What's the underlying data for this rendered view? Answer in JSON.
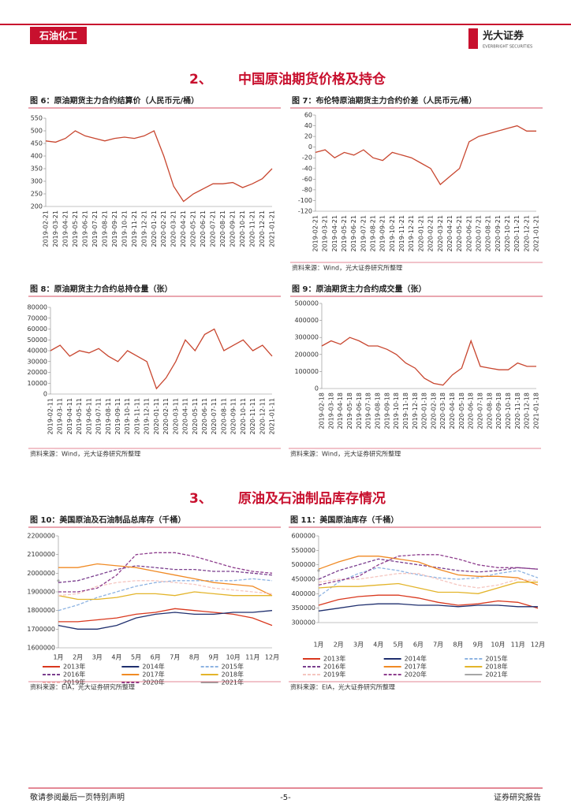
{
  "header": {
    "section": "石油化工",
    "logo": "光大证券",
    "logo_en": "EVERBRIGHT SECURITIES"
  },
  "sections": [
    {
      "number": "2、",
      "title": "中国原油期货价格及持仓"
    },
    {
      "number": "3、",
      "title": "原油及石油制品库存情况"
    }
  ],
  "footer": {
    "left": "敬请参阅最后一页特别声明",
    "page": "-5-",
    "right": "证券研究报告"
  },
  "chart_data": [
    {
      "type": "line",
      "title": "图 6：原油期货主力合约结算价（人民币元/桶）",
      "color": "#c8462f",
      "categories": [
        "2019-02-21",
        "2019-03-21",
        "2019-04-21",
        "2019-05-21",
        "2019-06-21",
        "2019-07-21",
        "2019-08-21",
        "2019-09-21",
        "2019-10-21",
        "2019-11-21",
        "2019-12-21",
        "2020-01-21",
        "2020-02-21",
        "2020-03-21",
        "2020-04-21",
        "2020-05-21",
        "2020-06-21",
        "2020-07-21",
        "2020-08-21",
        "2020-09-21",
        "2020-10-21",
        "2020-11-21",
        "2020-12-21",
        "2021-01-21"
      ],
      "values": [
        460,
        455,
        470,
        500,
        480,
        470,
        460,
        470,
        475,
        470,
        480,
        500,
        400,
        280,
        220,
        250,
        270,
        290,
        290,
        295,
        275,
        290,
        310,
        350
      ],
      "ylim": [
        200,
        550
      ],
      "yticks": [
        200,
        250,
        300,
        350,
        400,
        450,
        500,
        550
      ]
    },
    {
      "type": "line",
      "title": "图 7：布伦特原油期货主力合约价差（人民币元/桶）",
      "color": "#c8462f",
      "source": "资料来源：Wind，光大证券研究所整理",
      "categories": [
        "2019-02-21",
        "2019-03-21",
        "2019-04-21",
        "2019-05-21",
        "2019-06-21",
        "2019-07-21",
        "2019-08-21",
        "2019-09-21",
        "2019-10-21",
        "2019-11-21",
        "2019-12-21",
        "2020-01-21",
        "2020-02-21",
        "2020-03-21",
        "2020-04-21",
        "2020-05-21",
        "2020-06-21",
        "2020-07-21",
        "2020-08-21",
        "2020-09-21",
        "2020-10-21",
        "2020-11-21",
        "2020-12-21",
        "2021-01-21"
      ],
      "values": [
        -10,
        -5,
        -20,
        -10,
        -15,
        -5,
        -20,
        -25,
        -10,
        -15,
        -20,
        -30,
        -40,
        -70,
        -55,
        -40,
        10,
        20,
        25,
        30,
        35,
        40,
        30,
        30
      ],
      "ylim": [
        -120,
        60
      ],
      "yticks": [
        -120,
        -100,
        -80,
        -60,
        -40,
        -20,
        0,
        20,
        40,
        60
      ]
    },
    {
      "type": "line",
      "title": "图 8：原油期货主力合约总持仓量（张）",
      "color": "#c8462f",
      "source": "资料来源：Wind，光大证券研究所整理",
      "categories": [
        "2019-02-11",
        "2019-03-11",
        "2019-04-11",
        "2019-05-11",
        "2019-06-11",
        "2019-07-11",
        "2019-08-11",
        "2019-09-11",
        "2019-10-11",
        "2019-11-11",
        "2019-12-11",
        "2020-01-11",
        "2020-02-11",
        "2020-03-11",
        "2020-04-11",
        "2020-05-11",
        "2020-06-11",
        "2020-07-11",
        "2020-08-11",
        "2020-09-11",
        "2020-10-11",
        "2020-11-11",
        "2020-12-11",
        "2021-01-11"
      ],
      "values": [
        40000,
        45000,
        35000,
        40000,
        38000,
        42000,
        35000,
        30000,
        40000,
        35000,
        30000,
        5000,
        15000,
        30000,
        50000,
        40000,
        55000,
        60000,
        40000,
        45000,
        50000,
        40000,
        45000,
        35000
      ],
      "ylim": [
        0,
        80000
      ],
      "yticks": [
        0,
        10000,
        20000,
        30000,
        40000,
        50000,
        60000,
        70000,
        80000
      ]
    },
    {
      "type": "line",
      "title": "图 9：原油期货主力合约成交量（张）",
      "color": "#c8462f",
      "source": "资料来源：Wind，光大证券研究所整理",
      "categories": [
        "2019-02-18",
        "2019-03-18",
        "2019-04-18",
        "2019-05-18",
        "2019-06-18",
        "2019-07-18",
        "2019-08-18",
        "2019-09-18",
        "2019-10-18",
        "2019-11-18",
        "2019-12-18",
        "2020-01-18",
        "2020-02-18",
        "2020-03-18",
        "2020-04-18",
        "2020-05-18",
        "2020-06-18",
        "2020-07-18",
        "2020-08-18",
        "2020-09-18",
        "2020-10-18",
        "2020-11-18",
        "2020-12-18",
        "2021-01-18"
      ],
      "values": [
        250000,
        280000,
        260000,
        300000,
        280000,
        250000,
        250000,
        230000,
        200000,
        150000,
        120000,
        60000,
        30000,
        20000,
        80000,
        120000,
        280000,
        130000,
        120000,
        110000,
        110000,
        150000,
        130000,
        130000
      ],
      "ylim": [
        0,
        500000
      ],
      "yticks": [
        0,
        100000,
        200000,
        300000,
        400000,
        500000
      ]
    },
    {
      "type": "line",
      "title": "图 10：美国原油及石油制品总库存（千桶）",
      "source": "资料来源：EIA，光大证券研究所整理",
      "categories": [
        "1月",
        "2月",
        "3月",
        "4月",
        "5月",
        "6月",
        "7月",
        "8月",
        "9月",
        "10月",
        "11月",
        "12月"
      ],
      "ylim": [
        1600000,
        2200000
      ],
      "yticks": [
        1600000,
        1700000,
        1800000,
        1900000,
        2000000,
        2100000,
        2200000
      ],
      "series": [
        {
          "name": "2013年",
          "color": "#d9381e",
          "dash": false,
          "values": [
            1740000,
            1740000,
            1750000,
            1760000,
            1780000,
            1790000,
            1810000,
            1800000,
            1790000,
            1780000,
            1760000,
            1720000
          ]
        },
        {
          "name": "2014年",
          "color": "#1f2f6e",
          "dash": false,
          "values": [
            1720000,
            1700000,
            1700000,
            1720000,
            1760000,
            1780000,
            1790000,
            1780000,
            1780000,
            1790000,
            1790000,
            1800000
          ]
        },
        {
          "name": "2015年",
          "color": "#8db3e2",
          "dash": true,
          "values": [
            1800000,
            1830000,
            1870000,
            1900000,
            1930000,
            1950000,
            1960000,
            1960000,
            1960000,
            1960000,
            1970000,
            1960000
          ]
        },
        {
          "name": "2016年",
          "color": "#7a3e8e",
          "dash": true,
          "values": [
            1950000,
            1960000,
            1990000,
            2020000,
            2040000,
            2030000,
            2020000,
            2020000,
            2010000,
            2010000,
            2000000,
            1990000
          ]
        },
        {
          "name": "2017年",
          "color": "#f08a24",
          "dash": false,
          "values": [
            2030000,
            2030000,
            2050000,
            2040000,
            2030000,
            2010000,
            1990000,
            1970000,
            1950000,
            1940000,
            1930000,
            1880000
          ]
        },
        {
          "name": "2018年",
          "color": "#e3b42a",
          "dash": false,
          "values": [
            1880000,
            1860000,
            1860000,
            1870000,
            1890000,
            1890000,
            1880000,
            1900000,
            1890000,
            1880000,
            1880000,
            1880000
          ]
        },
        {
          "name": "2019年",
          "color": "#f5c6c0",
          "dash": true,
          "values": [
            1880000,
            1890000,
            1930000,
            1950000,
            1960000,
            1960000,
            1950000,
            1940000,
            1920000,
            1910000,
            1900000,
            1890000
          ]
        },
        {
          "name": "2020年",
          "color": "#8e3e8e",
          "dash": true,
          "values": [
            1900000,
            1900000,
            1920000,
            1990000,
            2100000,
            2110000,
            2110000,
            2090000,
            2060000,
            2030000,
            2010000,
            2000000
          ]
        },
        {
          "name": "2021年",
          "color": "#a6a6a6",
          "dash": false,
          "values": [
            1960000,
            null,
            null,
            null,
            null,
            null,
            null,
            null,
            null,
            null,
            null,
            null
          ]
        }
      ]
    },
    {
      "type": "line",
      "title": "图 11：美国原油库存（千桶）",
      "source": "资料来源：EIA，光大证券研究所整理",
      "categories": [
        "1月",
        "2月",
        "3月",
        "4月",
        "5月",
        "6月",
        "7月",
        "8月",
        "9月",
        "10月",
        "11月",
        "12月"
      ],
      "ylim": [
        300000,
        600000
      ],
      "yticks": [
        300000,
        350000,
        400000,
        450000,
        500000,
        550000,
        600000
      ],
      "series": [
        {
          "name": "2013年",
          "color": "#d9381e",
          "dash": false,
          "values": [
            360000,
            380000,
            390000,
            395000,
            395000,
            385000,
            370000,
            360000,
            365000,
            375000,
            370000,
            350000
          ]
        },
        {
          "name": "2014年",
          "color": "#1f2f6e",
          "dash": false,
          "values": [
            340000,
            350000,
            360000,
            365000,
            365000,
            360000,
            360000,
            355000,
            360000,
            360000,
            355000,
            355000
          ]
        },
        {
          "name": "2015年",
          "color": "#8db3e2",
          "dash": true,
          "values": [
            390000,
            440000,
            470000,
            490000,
            480000,
            465000,
            455000,
            450000,
            455000,
            470000,
            480000,
            455000
          ]
        },
        {
          "name": "2016年",
          "color": "#7a3e8e",
          "dash": true,
          "values": [
            450000,
            480000,
            500000,
            520000,
            510000,
            500000,
            490000,
            480000,
            475000,
            480000,
            490000,
            485000
          ]
        },
        {
          "name": "2017年",
          "color": "#f08a24",
          "dash": false,
          "values": [
            485000,
            510000,
            530000,
            530000,
            520000,
            510000,
            485000,
            465000,
            460000,
            460000,
            455000,
            430000
          ]
        },
        {
          "name": "2018年",
          "color": "#e3b42a",
          "dash": false,
          "values": [
            420000,
            425000,
            425000,
            430000,
            435000,
            420000,
            405000,
            405000,
            400000,
            420000,
            440000,
            440000
          ]
        },
        {
          "name": "2019年",
          "color": "#f5c6c0",
          "dash": true,
          "values": [
            440000,
            450000,
            450000,
            460000,
            470000,
            470000,
            450000,
            430000,
            420000,
            430000,
            450000,
            445000
          ]
        },
        {
          "name": "2020年",
          "color": "#8e3e8e",
          "dash": true,
          "values": [
            430000,
            445000,
            460000,
            500000,
            530000,
            535000,
            535000,
            520000,
            500000,
            490000,
            490000,
            485000
          ]
        },
        {
          "name": "2021年",
          "color": "#a6a6a6",
          "dash": false,
          "values": [
            480000,
            null,
            null,
            null,
            null,
            null,
            null,
            null,
            null,
            null,
            null,
            null
          ]
        }
      ]
    }
  ]
}
